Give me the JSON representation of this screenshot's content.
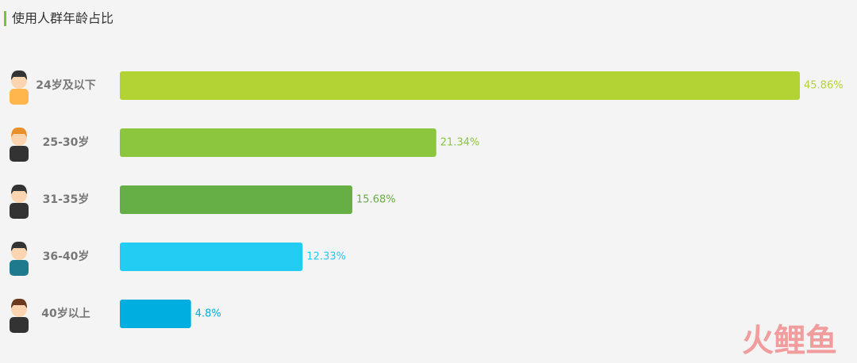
{
  "chart_data": {
    "type": "bar",
    "title": "使用人群年龄占比",
    "categories": [
      "24岁及以下",
      "25-30岁",
      "31-35岁",
      "36-40岁",
      "40岁以上"
    ],
    "values": [
      45.86,
      21.34,
      15.68,
      12.33,
      4.8
    ],
    "value_labels": [
      "45.86%",
      "21.34%",
      "15.68%",
      "12.33%",
      "4.8%"
    ],
    "colors": [
      "#b3d334",
      "#8cc63f",
      "#66ae46",
      "#22ccf2",
      "#00aedf"
    ]
  },
  "watermark": "火鲤鱼"
}
